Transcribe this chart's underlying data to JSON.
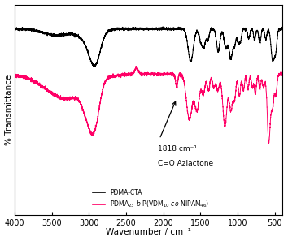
{
  "xlim": [
    4000,
    400
  ],
  "xlabel": "Wavenumber / cm⁻¹",
  "ylabel": "% Transmittance",
  "background_color": "#ffffff",
  "black_color": "#000000",
  "pink_color": "#FF0066",
  "annotation_text_line1": "1818 cm⁻¹",
  "annotation_text_line2": "C=O Azlactone",
  "legend_labels": [
    "PDMA-CTA",
    "PDMA$_{23}$-$b$-P(VDM$_{10}$-$co$-NIPAM$_{46}$)"
  ],
  "legend_colors": [
    "#000000",
    "#FF0066"
  ]
}
